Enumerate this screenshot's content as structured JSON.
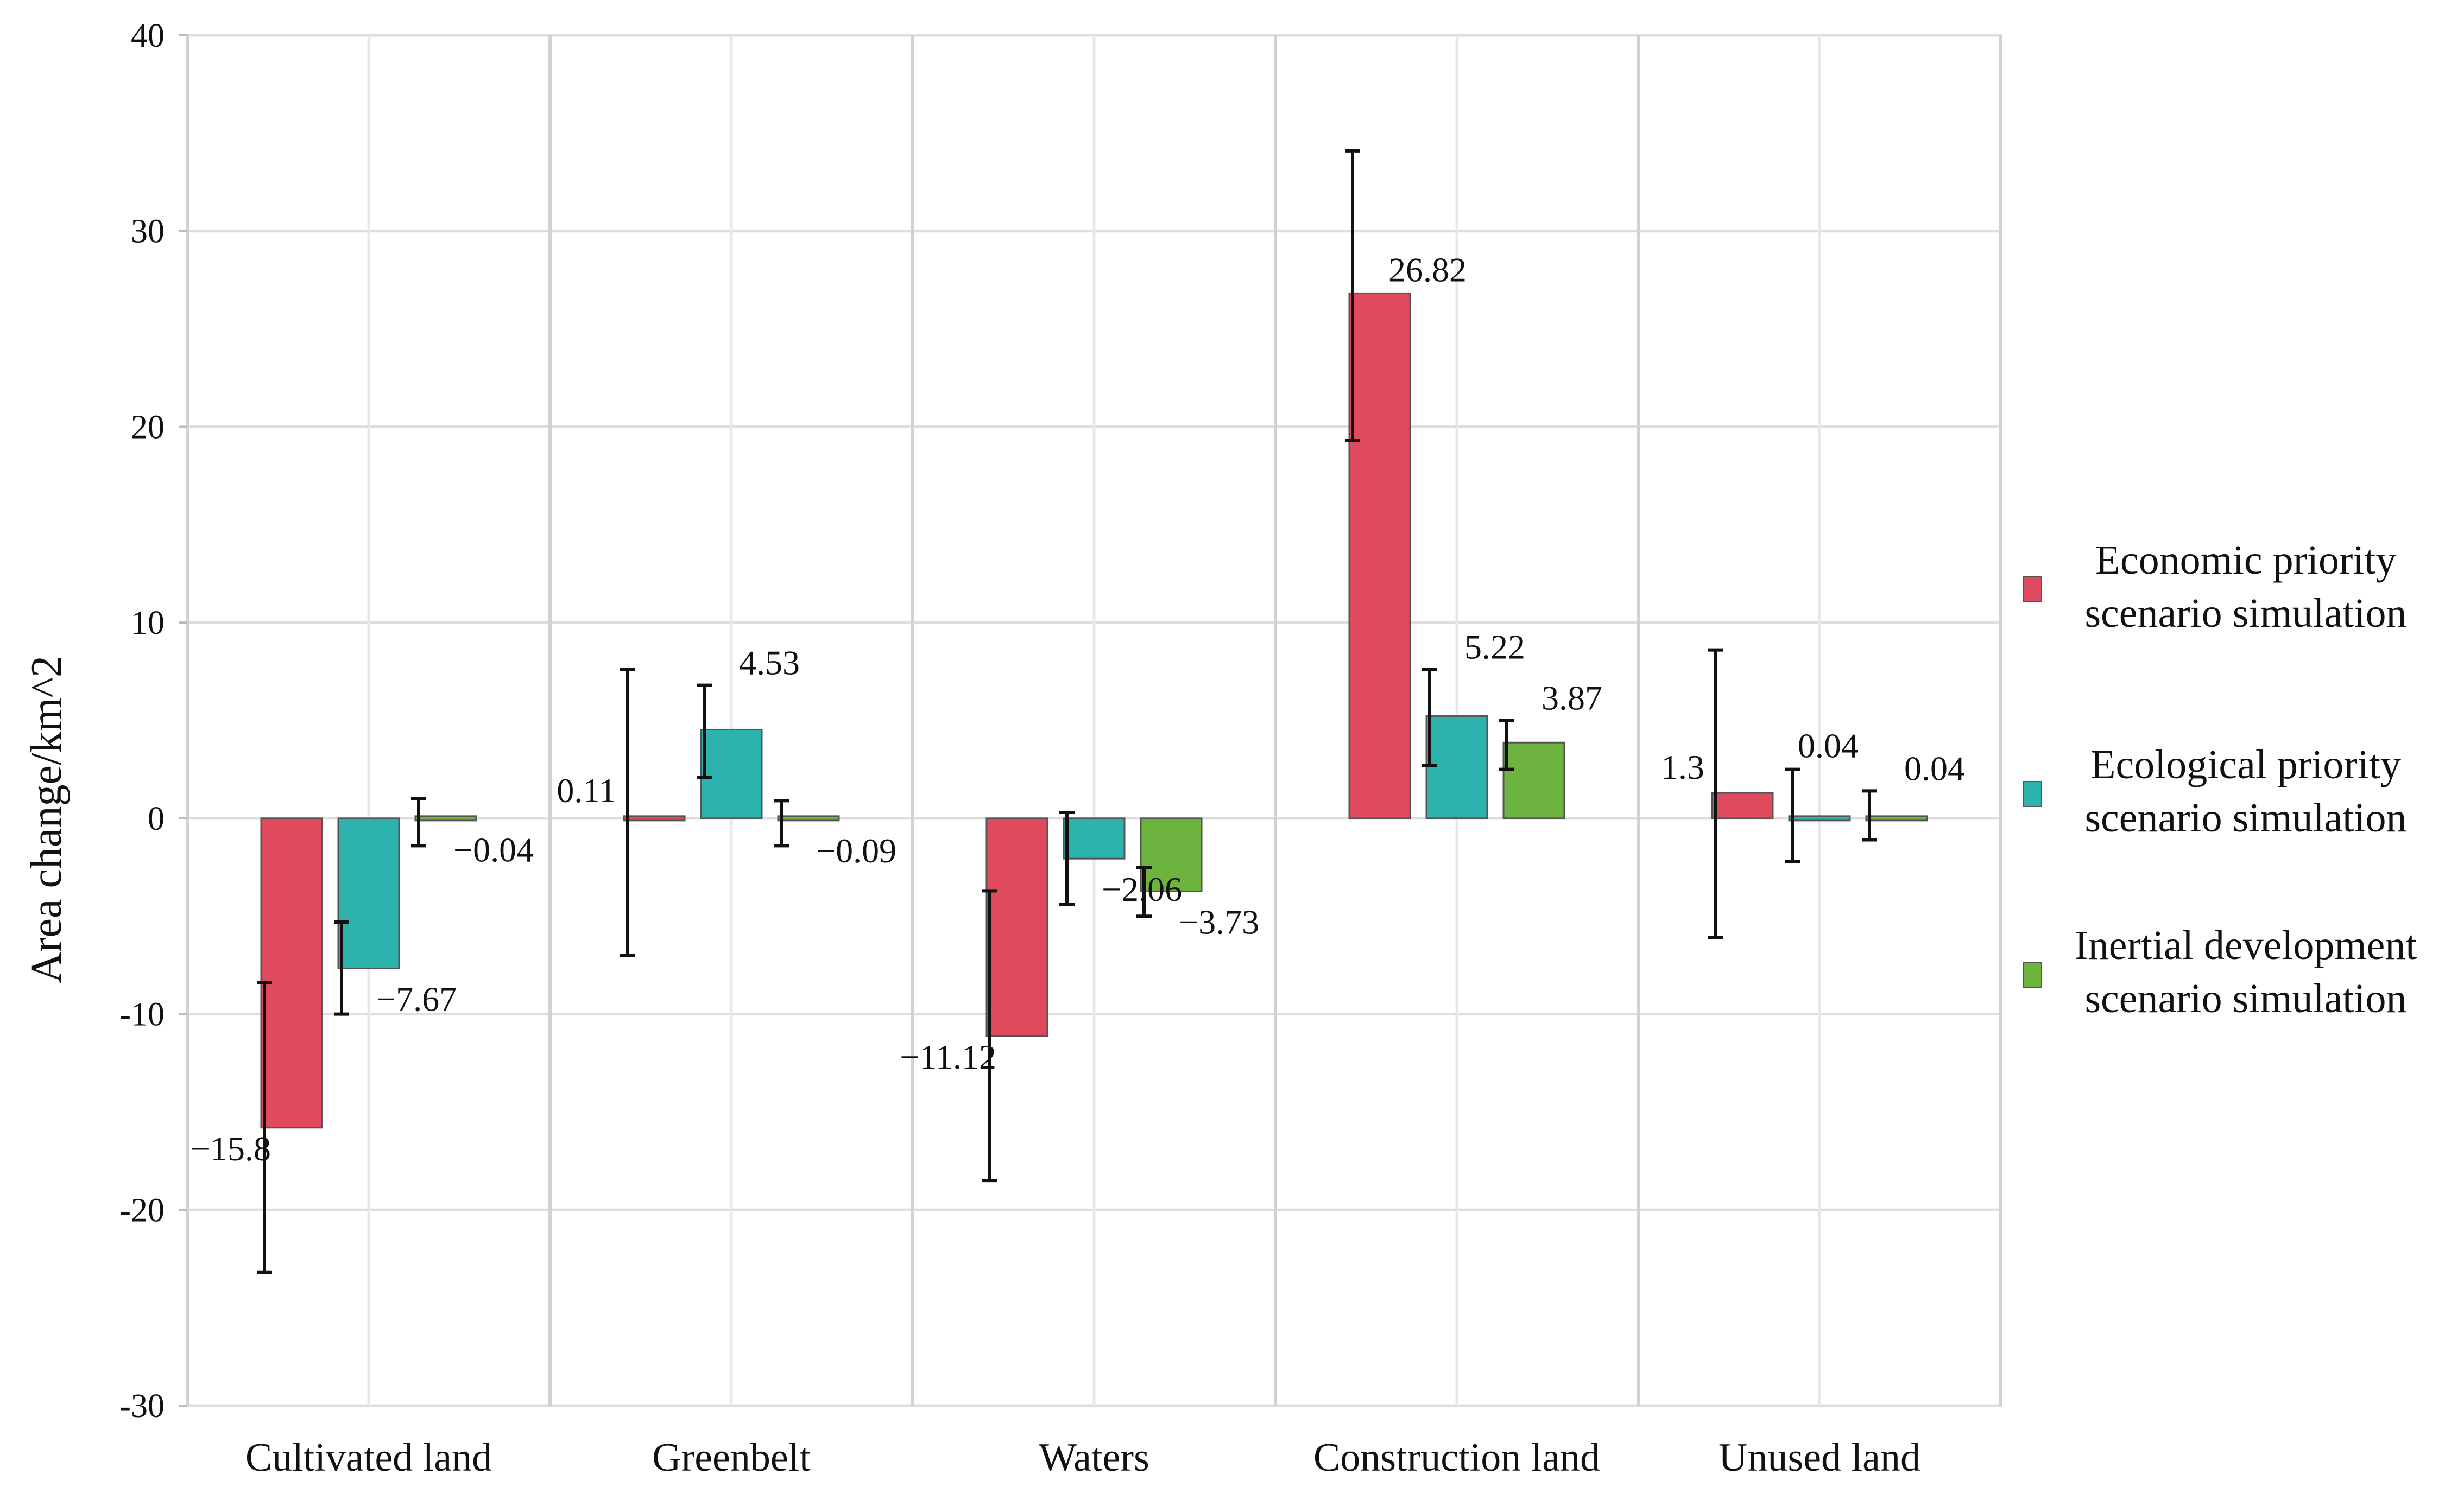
{
  "chart_data": {
    "type": "bar",
    "title": "",
    "xlabel": "",
    "ylabel": "Area change/km^2",
    "ylim": [
      -30,
      40
    ],
    "yticks": [
      40,
      30,
      20,
      10,
      0,
      -10,
      -20,
      -30
    ],
    "grid": true,
    "legend_position": "right",
    "categories": [
      "Cultivated land",
      "Greenbelt",
      "Waters",
      "Construction land",
      "Unused land"
    ],
    "series": [
      {
        "name": "Economic priority scenario simulation",
        "legend_lines": [
          "Economic priority",
          "scenario simulation"
        ],
        "color": "#e04a5f",
        "values": [
          -15.8,
          0.11,
          -11.12,
          26.82,
          1.3
        ],
        "labels": [
          "−15.8",
          "0.11",
          "−11.12",
          "26.82",
          "1.3"
        ],
        "error": [
          [
            -23.2,
            -8.4
          ],
          [
            -7.0,
            7.6
          ],
          [
            -18.5,
            -3.7
          ],
          [
            19.3,
            34.1
          ],
          [
            -6.1,
            8.6
          ]
        ]
      },
      {
        "name": "Ecological priority scenario simulation",
        "legend_lines": [
          "Ecological priority",
          "scenario simulation"
        ],
        "color": "#2db3ad",
        "values": [
          -7.67,
          4.53,
          -2.06,
          5.22,
          0.04
        ],
        "labels": [
          "−7.67",
          "4.53",
          "−2.06",
          "5.22",
          "0.04"
        ],
        "error": [
          [
            -10.0,
            -5.3
          ],
          [
            2.1,
            6.8
          ],
          [
            -4.4,
            0.3
          ],
          [
            2.7,
            7.6
          ],
          [
            -2.2,
            2.5
          ]
        ]
      },
      {
        "name": "Inertial development scenario simulation",
        "legend_lines": [
          "Inertial development",
          "scenario simulation"
        ],
        "color": "#6db33f",
        "values": [
          -0.04,
          -0.09,
          -3.73,
          3.87,
          0.04
        ],
        "labels": [
          "−0.04",
          "−0.09",
          "−3.73",
          "3.87",
          "0.04"
        ],
        "error": [
          [
            -1.4,
            1.0
          ],
          [
            -1.4,
            0.9
          ],
          [
            -5.0,
            -2.5
          ],
          [
            2.5,
            5.0
          ],
          [
            -1.1,
            1.4
          ]
        ]
      }
    ]
  }
}
